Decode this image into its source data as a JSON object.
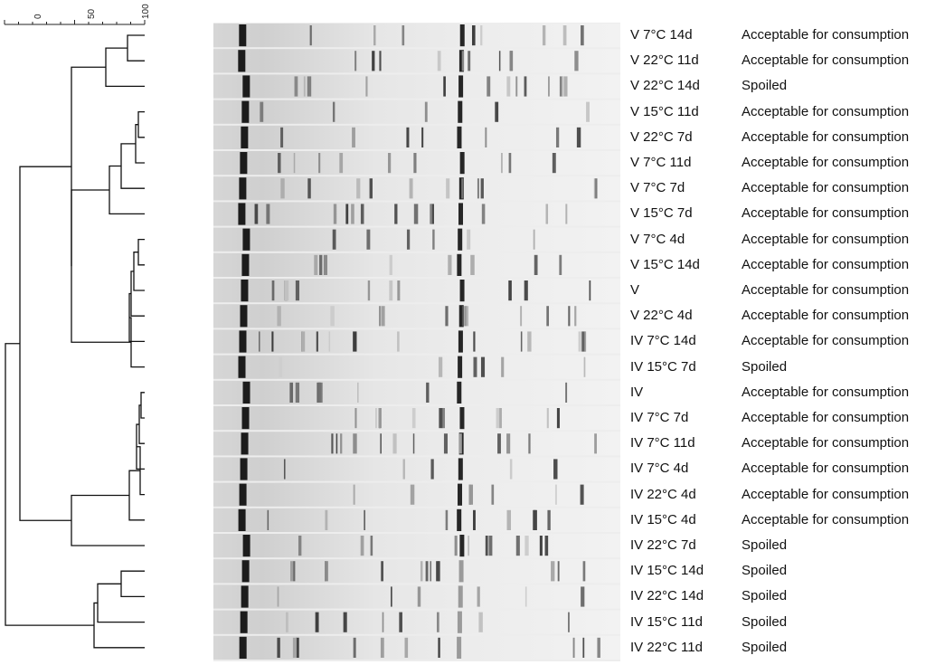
{
  "scale": {
    "tick_labels": [
      "0",
      "50",
      "100"
    ]
  },
  "rows": [
    {
      "sample": "V 7°C 14d",
      "status": "Acceptable for consumption"
    },
    {
      "sample": "V 22°C 11d",
      "status": "Acceptable for consumption"
    },
    {
      "sample": "V 22°C 14d",
      "status": "Spoiled"
    },
    {
      "sample": "V 15°C 11d",
      "status": "Acceptable for consumption"
    },
    {
      "sample": "V 22°C 7d",
      "status": "Acceptable for consumption"
    },
    {
      "sample": "V 7°C 11d",
      "status": "Acceptable for consumption"
    },
    {
      "sample": "V 7°C 7d",
      "status": "Acceptable for consumption"
    },
    {
      "sample": "V 15°C 7d",
      "status": "Acceptable for consumption"
    },
    {
      "sample": "V 7°C 4d",
      "status": "Acceptable for consumption"
    },
    {
      "sample": "V 15°C 14d",
      "status": "Acceptable for consumption"
    },
    {
      "sample": "V",
      "status": "Acceptable for consumption"
    },
    {
      "sample": "V 22°C 4d",
      "status": "Acceptable for consumption"
    },
    {
      "sample": "IV 7°C 14d",
      "status": "Acceptable for consumption"
    },
    {
      "sample": "IV 15°C 7d",
      "status": "Spoiled"
    },
    {
      "sample": "IV",
      "status": "Acceptable for consumption"
    },
    {
      "sample": "IV 7°C 7d",
      "status": "Acceptable for consumption"
    },
    {
      "sample": "IV 7°C 11d",
      "status": "Acceptable for consumption"
    },
    {
      "sample": "IV 7°C 4d",
      "status": "Acceptable for consumption"
    },
    {
      "sample": "IV 22°C 4d",
      "status": "Acceptable for consumption"
    },
    {
      "sample": "IV 15°C 4d",
      "status": "Acceptable for consumption"
    },
    {
      "sample": "IV 22°C 7d",
      "status": "Spoiled"
    },
    {
      "sample": "IV 15°C 14d",
      "status": "Spoiled"
    },
    {
      "sample": "IV 22°C 14d",
      "status": "Spoiled"
    },
    {
      "sample": "IV 15°C 11d",
      "status": "Spoiled"
    },
    {
      "sample": "IV 22°C 11d",
      "status": "Spoiled"
    }
  ]
}
